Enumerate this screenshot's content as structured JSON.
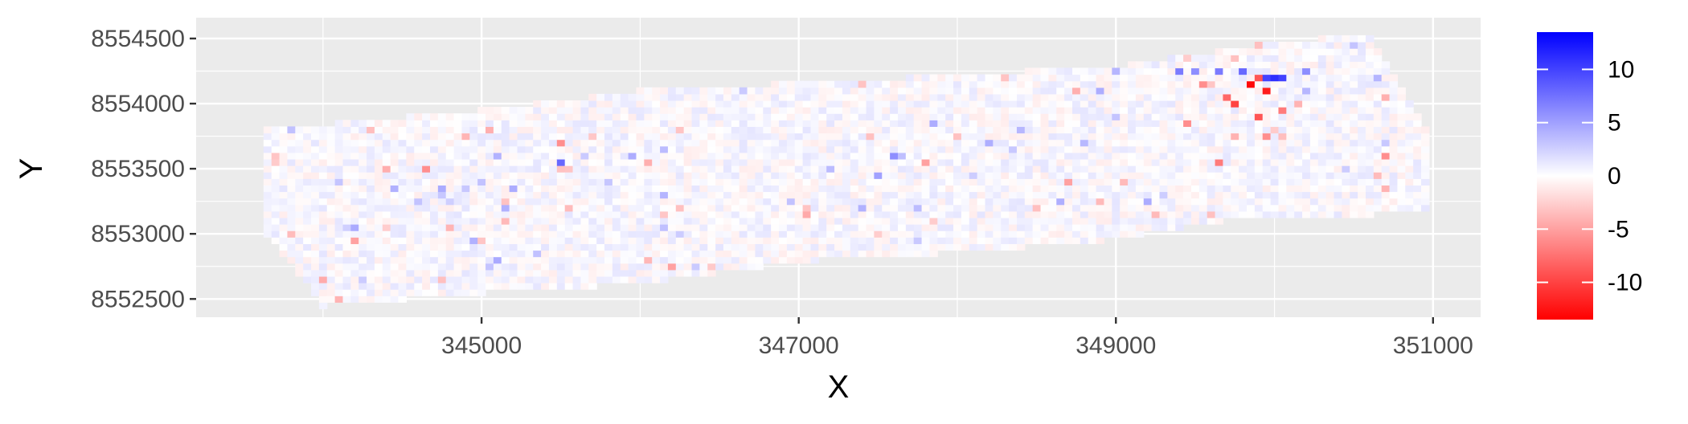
{
  "chart_data": {
    "type": "heatmap",
    "title": "",
    "xlabel": "X",
    "ylabel": "Y",
    "xlim": [
      343200,
      351300
    ],
    "ylim": [
      8552360,
      8554660
    ],
    "x_ticks": [
      345000,
      347000,
      349000,
      351000
    ],
    "x_tick_labels": [
      "345000",
      "347000",
      "349000",
      "351000"
    ],
    "y_ticks": [
      8552500,
      8553000,
      8553500,
      8554000,
      8554500
    ],
    "y_tick_labels": [
      "8552500",
      "8553000",
      "8553500",
      "8554000",
      "8554500"
    ],
    "grid": true,
    "panel_background": "#ebebeb",
    "colorscale": {
      "low": "#ff0000",
      "mid": "#ffffff",
      "high": "#0000ff",
      "min": -13.5,
      "max": 13.5,
      "midpoint": 0
    },
    "legend": {
      "position": "right",
      "breaks": [
        10,
        5,
        0,
        -5,
        -10
      ],
      "break_labels": [
        "10",
        "5",
        "0",
        "-5",
        "-10"
      ]
    },
    "cell_size": 50,
    "extent_profile": [
      {
        "x": 343650,
        "ymin": 8552980,
        "ymax": 8553800
      },
      {
        "x": 344000,
        "ymin": 8552450,
        "ymax": 8553840
      },
      {
        "x": 345000,
        "ymin": 8552550,
        "ymax": 8553950
      },
      {
        "x": 346000,
        "ymin": 8552620,
        "ymax": 8554100
      },
      {
        "x": 347000,
        "ymin": 8552790,
        "ymax": 8554160
      },
      {
        "x": 348000,
        "ymin": 8552860,
        "ymax": 8554220
      },
      {
        "x": 349000,
        "ymin": 8552960,
        "ymax": 8554290
      },
      {
        "x": 349900,
        "ymin": 8553150,
        "ymax": 8554450
      },
      {
        "x": 350600,
        "ymin": 8553150,
        "ymax": 8554540
      },
      {
        "x": 350950,
        "ymin": 8553170,
        "ymax": 8553800
      }
    ],
    "highlights": [
      {
        "x": 349400,
        "y": 8554265,
        "value": 7
      },
      {
        "x": 349500,
        "y": 8554265,
        "value": 6
      },
      {
        "x": 349650,
        "y": 8554265,
        "value": 7
      },
      {
        "x": 349800,
        "y": 8554265,
        "value": 8
      },
      {
        "x": 349950,
        "y": 8554210,
        "value": 10
      },
      {
        "x": 350000,
        "y": 8554215,
        "value": 11
      },
      {
        "x": 350050,
        "y": 8554215,
        "value": 10
      },
      {
        "x": 350200,
        "y": 8554265,
        "value": 6
      },
      {
        "x": 345500,
        "y": 8553530,
        "value": 8
      },
      {
        "x": 347600,
        "y": 8553580,
        "value": 6
      },
      {
        "x": 347500,
        "y": 8553450,
        "value": 5
      },
      {
        "x": 349850,
        "y": 8554150,
        "value": -13
      },
      {
        "x": 349900,
        "y": 8554200,
        "value": -9
      },
      {
        "x": 349950,
        "y": 8554100,
        "value": -12
      },
      {
        "x": 349700,
        "y": 8554050,
        "value": -8
      },
      {
        "x": 349750,
        "y": 8554000,
        "value": -10
      },
      {
        "x": 349900,
        "y": 8553900,
        "value": -9
      },
      {
        "x": 349550,
        "y": 8554150,
        "value": -6
      },
      {
        "x": 350050,
        "y": 8553950,
        "value": -7
      },
      {
        "x": 349950,
        "y": 8553750,
        "value": -6
      },
      {
        "x": 349650,
        "y": 8553550,
        "value": -7
      },
      {
        "x": 349450,
        "y": 8553850,
        "value": -6
      },
      {
        "x": 344650,
        "y": 8553500,
        "value": -6
      },
      {
        "x": 345500,
        "y": 8553700,
        "value": -6
      },
      {
        "x": 346200,
        "y": 8552750,
        "value": -5
      },
      {
        "x": 344200,
        "y": 8552950,
        "value": -5
      },
      {
        "x": 347800,
        "y": 8553550,
        "value": -5
      },
      {
        "x": 350700,
        "y": 8553600,
        "value": -6
      },
      {
        "x": 348700,
        "y": 8553400,
        "value": -5
      },
      {
        "x": 344100,
        "y": 8552500,
        "value": -4
      }
    ]
  }
}
